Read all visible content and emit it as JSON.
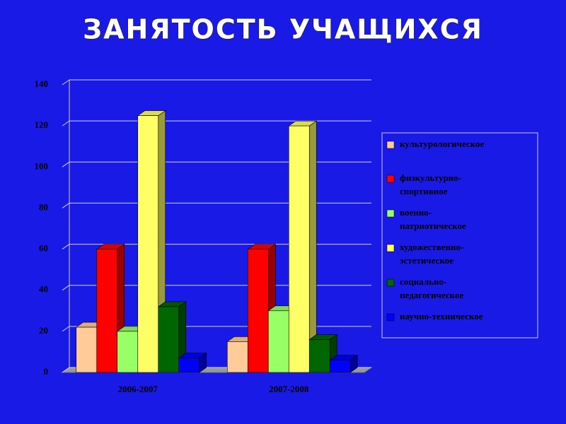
{
  "chart_data": {
    "type": "bar3d",
    "title": "ЗАНЯТОСТЬ УЧАЩИХСЯ",
    "categories": [
      "2006-2007",
      "2007-2008"
    ],
    "series": [
      {
        "name": "культурологическое",
        "color": "#ffcc99",
        "values": [
          22,
          15
        ]
      },
      {
        "name": "физкультурно-спортивное",
        "color": "#ff0000",
        "values": [
          60,
          60
        ]
      },
      {
        "name": "военно-патриотическое",
        "color": "#99ff66",
        "values": [
          20,
          30
        ]
      },
      {
        "name": "художественно-эстетическое",
        "color": "#ffff66",
        "values": [
          125,
          120
        ]
      },
      {
        "name": "социально-педагогическое",
        "color": "#006600",
        "values": [
          32,
          16
        ]
      },
      {
        "name": "научно-техническое",
        "color": "#0000ff",
        "values": [
          7,
          6
        ]
      }
    ],
    "ylim": [
      0,
      140
    ],
    "yticks": [
      0,
      20,
      40,
      60,
      80,
      100,
      120,
      140
    ],
    "grid": true,
    "legend": "right"
  }
}
